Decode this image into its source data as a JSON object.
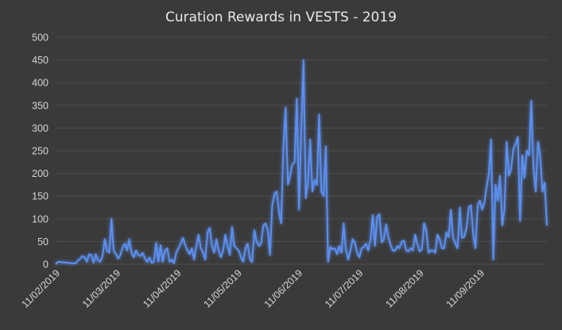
{
  "chart_data": {
    "type": "line",
    "title": "Curation Rewards in VESTS - 2019",
    "xlabel": "",
    "ylabel": "",
    "ylim": [
      0,
      500
    ],
    "yticks": [
      0,
      50,
      100,
      150,
      200,
      250,
      300,
      350,
      400,
      450,
      500
    ],
    "xticks": [
      "11/02/2019",
      "11/03/2019",
      "11/04/2019",
      "11/05/2019",
      "11/06/2019",
      "11/07/2019",
      "11/08/2019",
      "11/09/2019"
    ],
    "grid": true,
    "legend": "none",
    "line_color": "#5b8ff0",
    "series": [
      {
        "values": [
          0,
          5,
          5,
          4,
          4,
          3,
          3,
          2,
          2,
          2,
          8,
          12,
          18,
          15,
          5,
          22,
          20,
          3,
          22,
          8,
          5,
          18,
          55,
          30,
          25,
          100,
          30,
          22,
          12,
          20,
          38,
          45,
          30,
          55,
          25,
          15,
          30,
          20,
          18,
          25,
          12,
          5,
          15,
          3,
          5,
          47,
          5,
          42,
          5,
          30,
          35,
          5,
          10,
          2,
          25,
          35,
          45,
          58,
          42,
          30,
          22,
          35,
          10,
          40,
          65,
          35,
          25,
          10,
          70,
          80,
          40,
          25,
          55,
          30,
          15,
          30,
          65,
          40,
          20,
          82,
          40,
          35,
          30,
          15,
          5,
          35,
          45,
          10,
          5,
          75,
          50,
          40,
          45,
          85,
          90,
          75,
          20,
          130,
          155,
          160,
          115,
          90,
          260,
          345,
          175,
          195,
          220,
          225,
          365,
          120,
          300,
          450,
          145,
          180,
          275,
          160,
          185,
          175,
          330,
          160,
          150,
          260,
          5,
          38,
          33,
          35,
          22,
          40,
          25,
          90,
          32,
          10,
          30,
          55,
          48,
          25,
          15,
          35,
          38,
          45,
          30,
          55,
          108,
          40,
          105,
          110,
          48,
          55,
          88,
          60,
          42,
          30,
          30,
          40,
          35,
          50,
          52,
          30,
          28,
          35,
          30,
          65,
          45,
          28,
          32,
          90,
          75,
          25,
          30,
          30,
          25,
          65,
          55,
          35,
          35,
          70,
          60,
          120,
          58,
          45,
          35,
          125,
          58,
          60,
          80,
          125,
          130,
          65,
          35,
          130,
          140,
          120,
          135,
          170,
          200,
          275,
          10,
          175,
          140,
          195,
          85,
          120,
          270,
          195,
          210,
          255,
          265,
          280,
          95,
          240,
          190,
          250,
          240,
          360,
          210,
          160,
          270,
          240,
          160,
          180,
          85
        ]
      }
    ]
  }
}
